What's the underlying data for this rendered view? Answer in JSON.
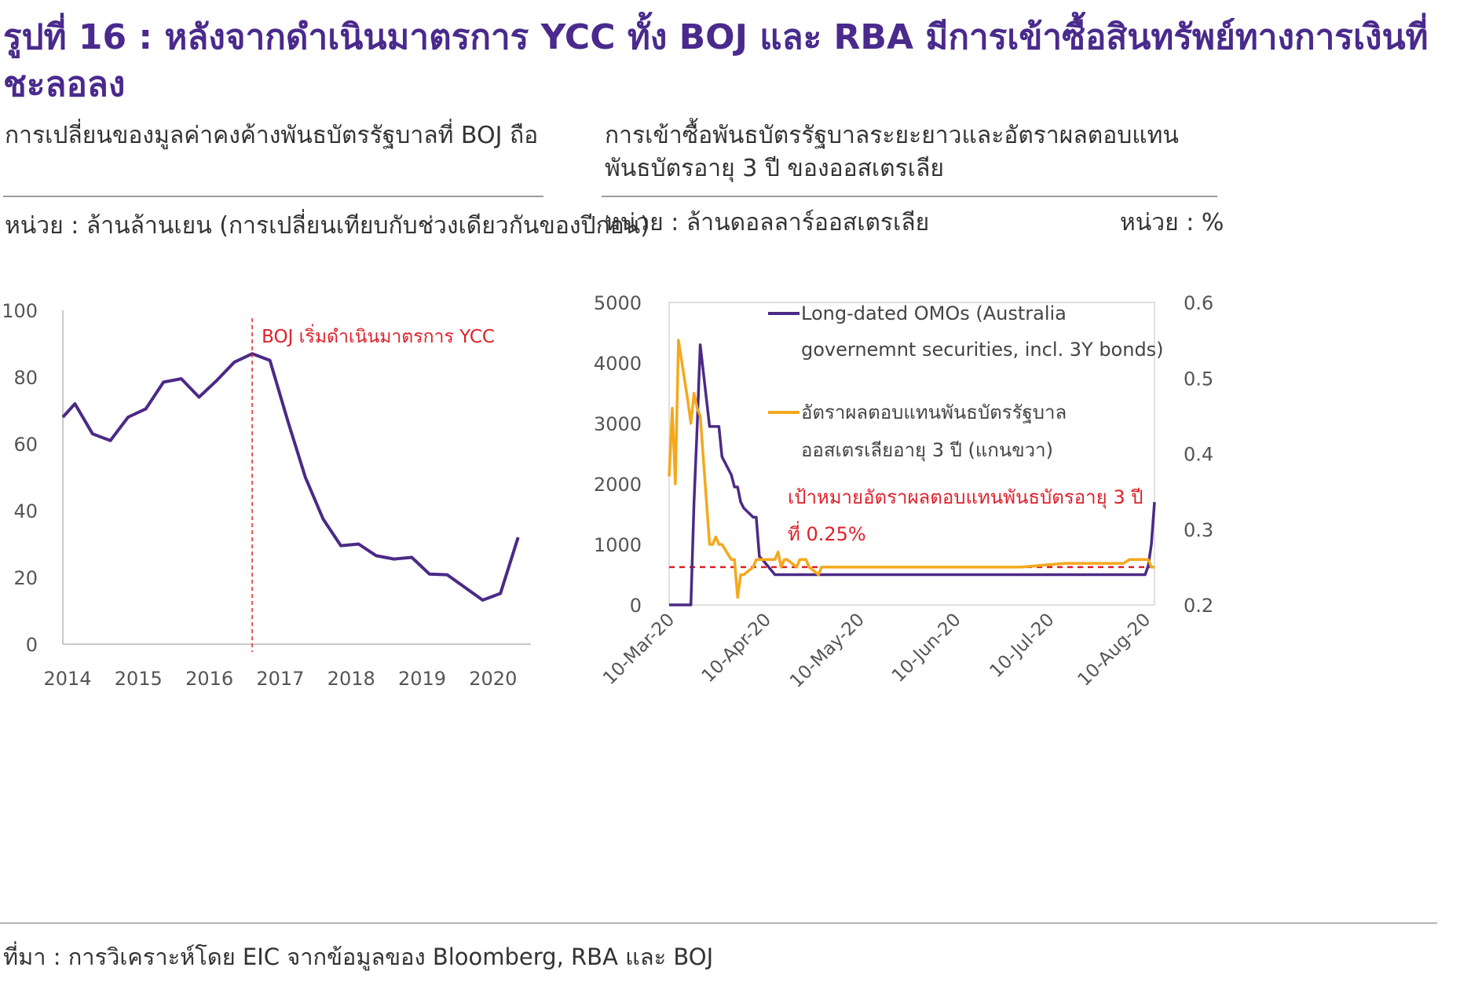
{
  "figure": {
    "title": "รูปที่ 16 : หลังจากดำเนินมาตรการ YCC ทั้ง BOJ และ RBA มีการเข้าซื้อสินทรัพย์ทางการเงินที่ชะลอลง",
    "source": "ที่มา : การวิเคราะห์โดย EIC จากข้อมูลของ Bloomberg, RBA และ BOJ"
  },
  "left_panel": {
    "title": "การเปลี่ยนของมูลค่าคงค้างพันธบัตรรัฐบาลที่ BOJ ถือ",
    "unit": "หน่วย : ล้านล้านเยน (การเปลี่ยนเทียบกับช่วงเดียวกันของปีก่อน)"
  },
  "right_panel": {
    "title_line1": "การเข้าซื้อพันธบัตรรัฐบาลระยะยาวและอัตราผลตอบแทน",
    "title_line2": "พันธบัตรอายุ 3 ปี ของออสเตรเลีย",
    "unit_left": "หน่วย  :  ล้านดอลลาร์ออสเตรเลีย",
    "unit_right": "หน่วย : %"
  },
  "colors": {
    "purple": "#4b2a86",
    "orange": "#f5a81c",
    "red": "#e0202a",
    "axis_text": "#555555",
    "title": "#4a2a8c"
  },
  "chart_data": [
    {
      "type": "line",
      "xlim": [
        2014,
        2020.6
      ],
      "ylim": [
        0,
        100
      ],
      "xticks": [
        "2014",
        "2015",
        "2016",
        "2017",
        "2018",
        "2019",
        "2020"
      ],
      "yticks": [
        "100",
        "80",
        "60",
        "40",
        "20",
        "0"
      ],
      "series": [
        {
          "x": [
            2014.0,
            2014.17,
            2014.42,
            2014.67,
            2014.92,
            2015.17,
            2015.42,
            2015.67,
            2015.92,
            2016.17,
            2016.42,
            2016.67,
            2016.92,
            2017.17,
            2017.42,
            2017.67,
            2017.92,
            2018.17,
            2018.42,
            2018.67,
            2018.92,
            2019.17,
            2019.42,
            2019.67,
            2019.92,
            2020.17,
            2020.42
          ],
          "values": [
            68,
            72,
            63,
            61,
            68,
            70.5,
            78.5,
            79.5,
            74,
            79,
            84.5,
            87,
            85,
            67,
            50,
            37.5,
            29.5,
            30,
            26.5,
            25.5,
            26,
            21,
            20.8,
            17,
            13.2,
            15.2,
            32
          ]
        }
      ],
      "annotations": [
        {
          "x": 2016.67,
          "label": "BOJ เริ่มดำเนินมาตรการ YCC",
          "style": "dashed-vertical"
        }
      ]
    },
    {
      "type": "line",
      "x_dates": [
        "2020-03-10",
        "2020-03-11",
        "2020-03-12",
        "2020-03-13",
        "2020-03-16",
        "2020-03-17",
        "2020-03-18",
        "2020-03-19",
        "2020-03-20",
        "2020-03-23",
        "2020-03-24",
        "2020-03-25",
        "2020-03-26",
        "2020-03-27",
        "2020-03-30",
        "2020-03-31",
        "2020-04-01",
        "2020-04-02",
        "2020-04-03",
        "2020-04-06",
        "2020-04-07",
        "2020-04-08",
        "2020-04-09",
        "2020-04-13",
        "2020-04-14",
        "2020-04-15",
        "2020-04-16",
        "2020-04-17",
        "2020-04-20",
        "2020-04-21",
        "2020-04-22",
        "2020-04-23",
        "2020-04-24",
        "2020-04-27",
        "2020-04-28",
        "2020-04-29",
        "2020-04-30",
        "2020-05-01",
        "2020-05-04",
        "2020-05-05",
        "2020-05-06",
        "2020-05-07",
        "2020-05-08",
        "2020-05-11",
        "2020-05-12",
        "2020-05-13",
        "2020-05-15",
        "2020-05-18",
        "2020-05-20",
        "2020-05-25",
        "2020-06-01",
        "2020-06-15",
        "2020-07-01",
        "2020-07-15",
        "2020-08-03",
        "2020-08-05",
        "2020-08-07",
        "2020-08-10",
        "2020-08-11",
        "2020-08-12",
        "2020-08-13"
      ],
      "tick_labels": [
        "10-Mar-20",
        "10-Apr-20",
        "10-May-20",
        "10-Jun-20",
        "10-Jul-20",
        "10-Aug-20"
      ],
      "y_left": {
        "ylim": [
          0,
          5000
        ],
        "ticks": [
          "5000",
          "4000",
          "3000",
          "2000",
          "1000",
          "0"
        ]
      },
      "y_right": {
        "ylim": [
          0.2,
          0.6
        ],
        "ticks": [
          "0.6",
          "0.5",
          "0.4",
          "0.3",
          "0.2"
        ]
      },
      "series": [
        {
          "name": "Long-dated OMOs (Australia governemnt securities, incl. 3Y bonds)",
          "axis": "left",
          "color": "#4b2a86",
          "values": [
            0,
            0,
            0,
            0,
            0,
            0,
            1700,
            2950,
            4300,
            2950,
            2950,
            2950,
            2950,
            2450,
            2150,
            1950,
            1950,
            1700,
            1600,
            1450,
            1450,
            800,
            750,
            500,
            500,
            500,
            500,
            500,
            500,
            500,
            500,
            500,
            500,
            500,
            500,
            500,
            500,
            500,
            500,
            500,
            500,
            500,
            500,
            500,
            500,
            500,
            500,
            500,
            500,
            500,
            500,
            500,
            500,
            500,
            500,
            500,
            500,
            500,
            650,
            1000,
            1700
          ]
        },
        {
          "name": "อัตราผลตอบแทนพันธบัตรรัฐบาล ออสเตรเลียอายุ 3 ปี (แกนขวา)",
          "axis": "right",
          "color": "#f5a81c",
          "values": [
            0.37,
            0.46,
            0.36,
            0.55,
            0.47,
            0.44,
            0.48,
            0.46,
            0.45,
            0.28,
            0.28,
            0.29,
            0.28,
            0.28,
            0.26,
            0.26,
            0.21,
            0.24,
            0.24,
            0.25,
            0.26,
            0.26,
            0.26,
            0.26,
            0.27,
            0.25,
            0.26,
            0.26,
            0.25,
            0.26,
            0.26,
            0.26,
            0.25,
            0.24,
            0.25,
            0.25,
            0.25,
            0.25,
            0.25,
            0.25,
            0.25,
            0.25,
            0.25,
            0.25,
            0.25,
            0.25,
            0.25,
            0.25,
            0.25,
            0.25,
            0.25,
            0.25,
            0.25,
            0.255,
            0.255,
            0.26,
            0.26,
            0.26,
            0.26,
            0.25,
            0.25
          ]
        }
      ],
      "target": {
        "value": 0.25,
        "axis": "right",
        "label_line1": "เป้าหมายอัตราผลตอบแทนพันธบัตรอายุ 3 ปี",
        "label_line2": "ที่ 0.25%"
      },
      "legend": [
        {
          "line1": "Long-dated OMOs (Australia",
          "line2": "governemnt securities, incl. 3Y bonds)"
        },
        {
          "line1": "อัตราผลตอบแทนพันธบัตรรัฐบาล",
          "line2": "ออสเตรเลียอายุ 3 ปี (แกนขวา)"
        }
      ],
      "legend_position": "top-right"
    }
  ]
}
